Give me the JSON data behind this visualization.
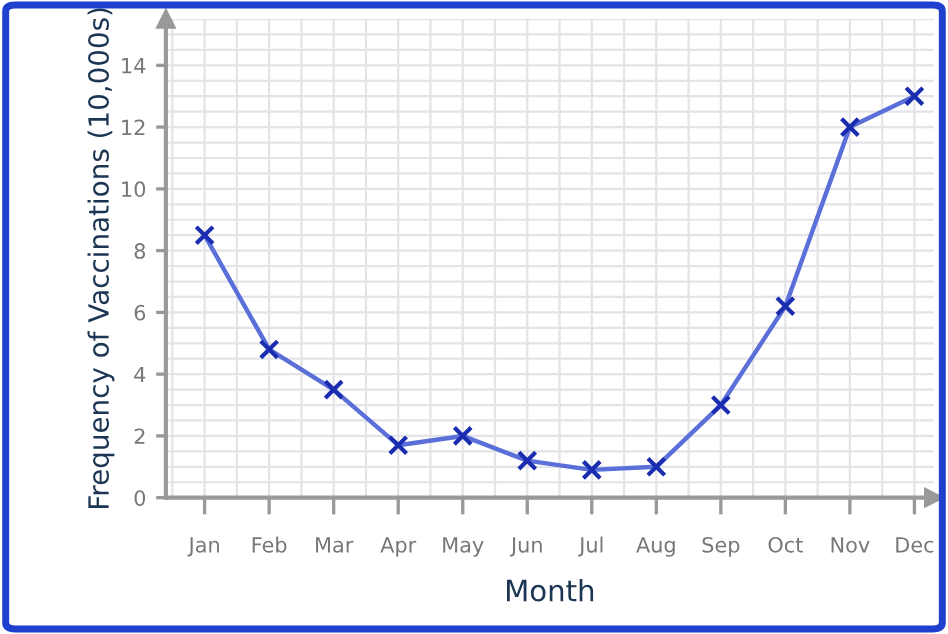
{
  "chart_data": {
    "type": "line",
    "xlabel": "Month",
    "ylabel": "Frequency of Vaccinations (10,000s)",
    "categories": [
      "Jan",
      "Feb",
      "Mar",
      "Apr",
      "May",
      "Jun",
      "Jul",
      "Aug",
      "Sep",
      "Oct",
      "Nov",
      "Dec"
    ],
    "series": [
      {
        "color": "#5b6fd8",
        "values": [
          8.5,
          4.8,
          3.5,
          1.7,
          2.0,
          1.2,
          0.9,
          1.0,
          3.0,
          6.2,
          12.0,
          13.0
        ]
      }
    ],
    "ylim": [
      0,
      15.5
    ],
    "yticks": [
      0,
      2,
      4,
      6,
      8,
      10,
      12,
      14
    ],
    "grid": true,
    "marker": "cross",
    "line_style": "solid"
  }
}
